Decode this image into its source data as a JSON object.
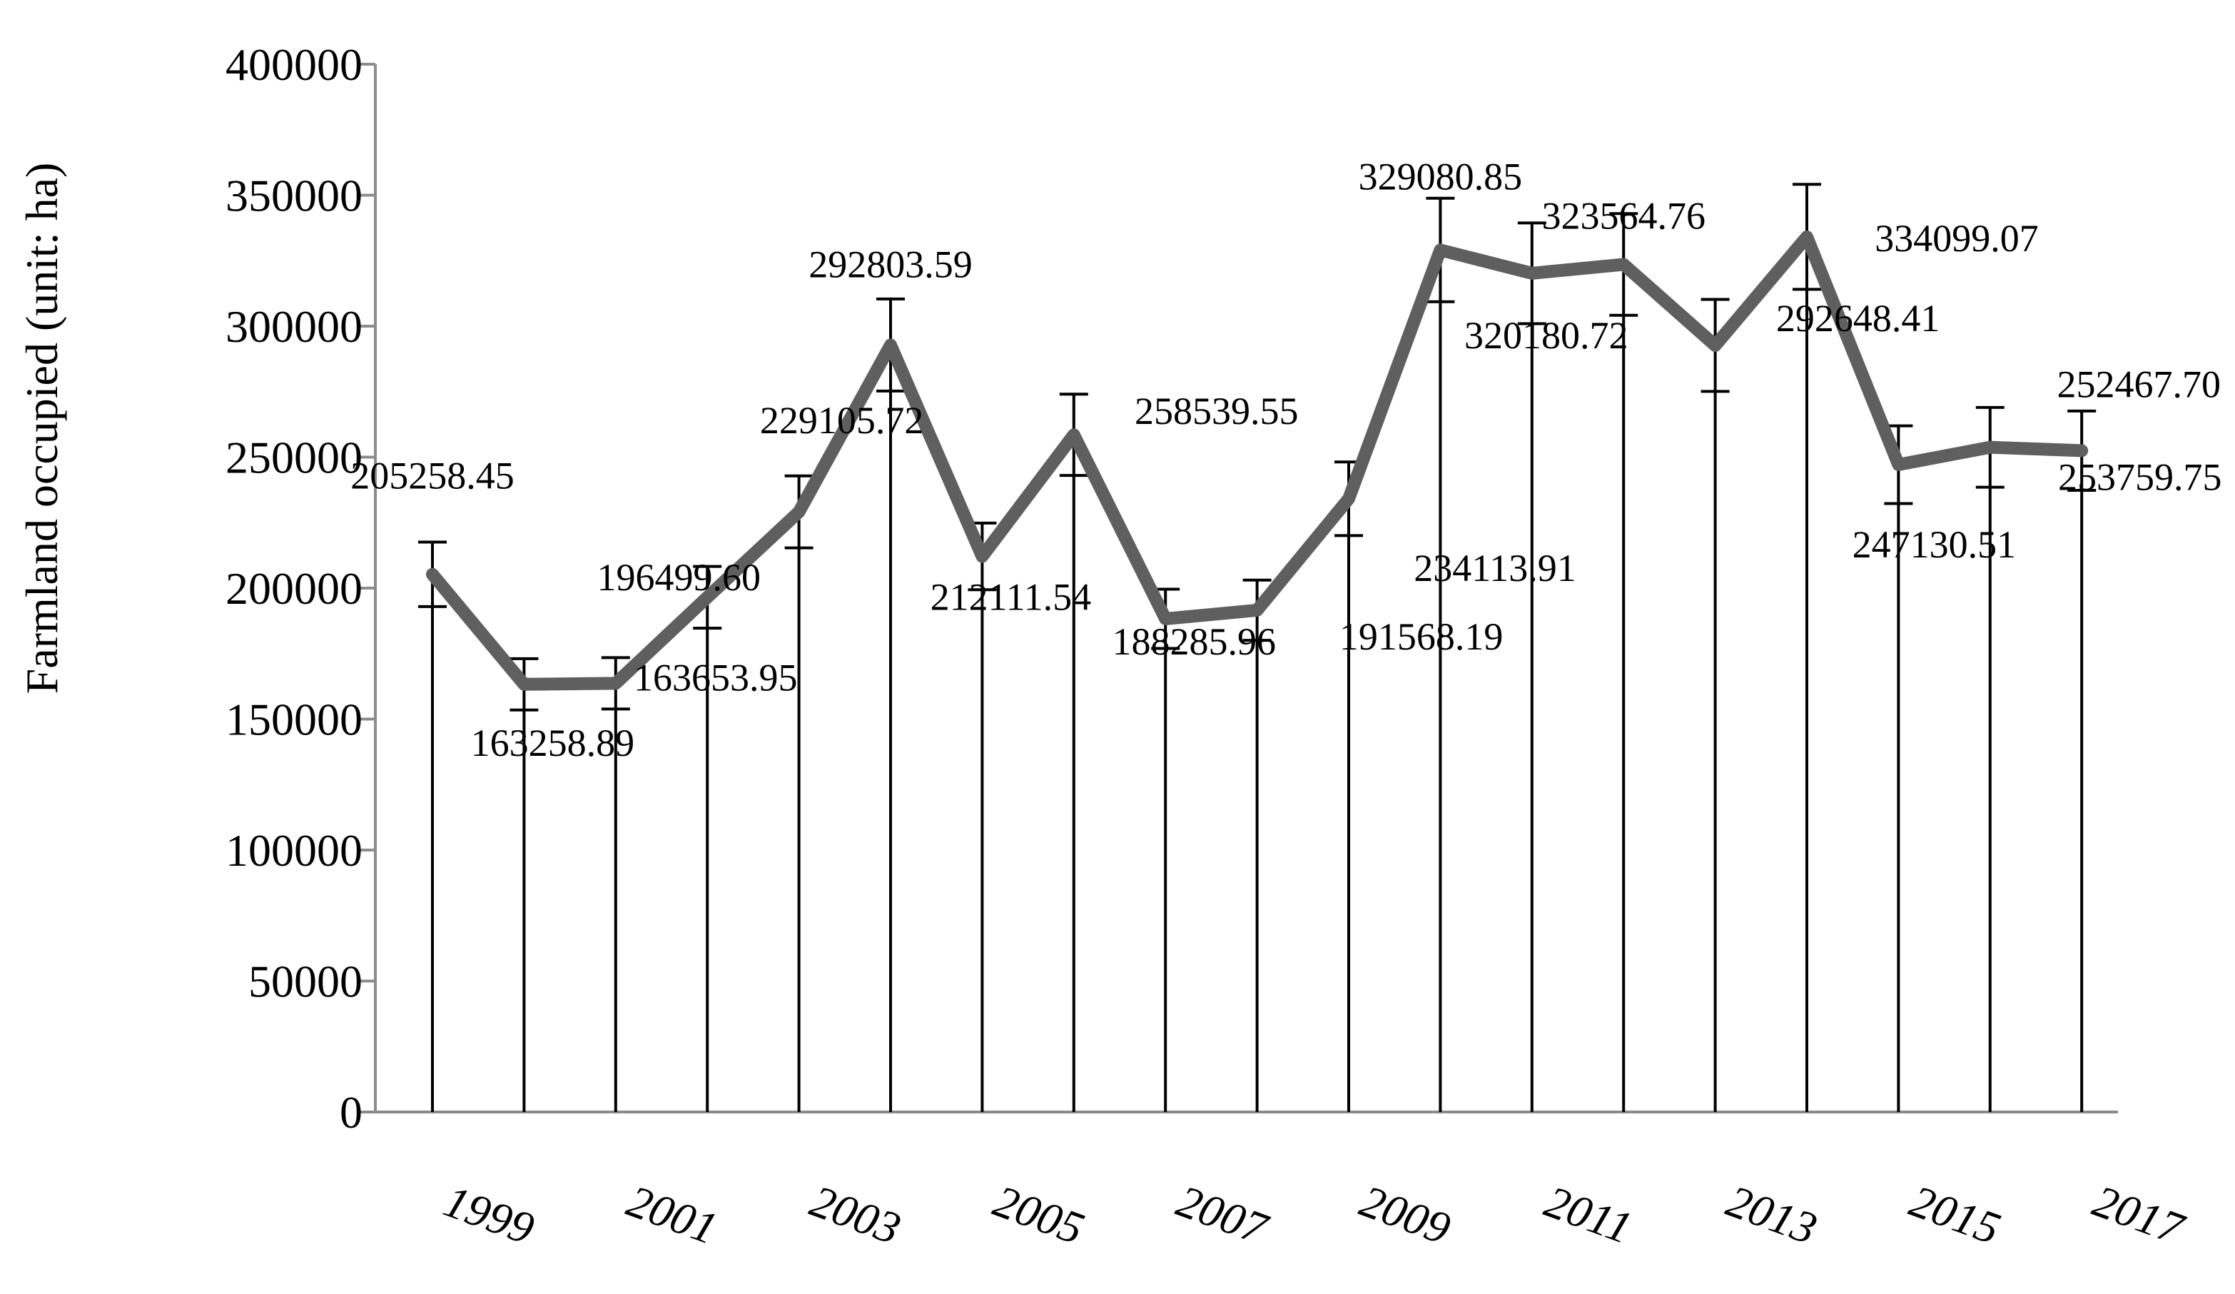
{
  "chart_data": {
    "type": "line",
    "ylabel": "Farmland occupied (unit: ha)",
    "ylim": [
      0,
      400000
    ],
    "yticks": [
      0,
      50000,
      100000,
      150000,
      200000,
      250000,
      300000,
      350000,
      400000
    ],
    "ytick_labels": [
      "0",
      "50000",
      "100000",
      "150000",
      "200000",
      "250000",
      "300000",
      "350000",
      "400000"
    ],
    "x": [
      1999,
      2000,
      2001,
      2002,
      2003,
      2004,
      2005,
      2006,
      2007,
      2008,
      2009,
      2010,
      2011,
      2012,
      2013,
      2014,
      2015,
      2016,
      2017
    ],
    "xtick_labels": [
      "1999",
      "2001",
      "2003",
      "2005",
      "2007",
      "2009",
      "2011",
      "2013",
      "2015",
      "2017"
    ],
    "grid": false,
    "legend": "none",
    "line_color": "#5f5f5f",
    "series": [
      {
        "values": [
          205258.45,
          163258.89,
          163653.95,
          196499.6,
          229105.72,
          292803.59,
          212111.54,
          258539.55,
          188285.96,
          191568.19,
          234113.91,
          329080.85,
          320180.72,
          323564.76,
          292648.41,
          334099.07,
          247130.51,
          253759.75,
          252467.7
        ],
        "labels": [
          "205258.45",
          "163258.89",
          "163653.95",
          "196499.60",
          "229105.72",
          "292803.59",
          "212111.54",
          "258539.55",
          "188285.96",
          "191568.19",
          "234113.91",
          "329080.85",
          "320180.72",
          "323564.76",
          "292648.41",
          "334099.07",
          "247130.51",
          "253759.75",
          "252467.70"
        ],
        "error_bars": {
          "type": "percent",
          "value": 6,
          "direction": "both"
        }
      }
    ]
  }
}
